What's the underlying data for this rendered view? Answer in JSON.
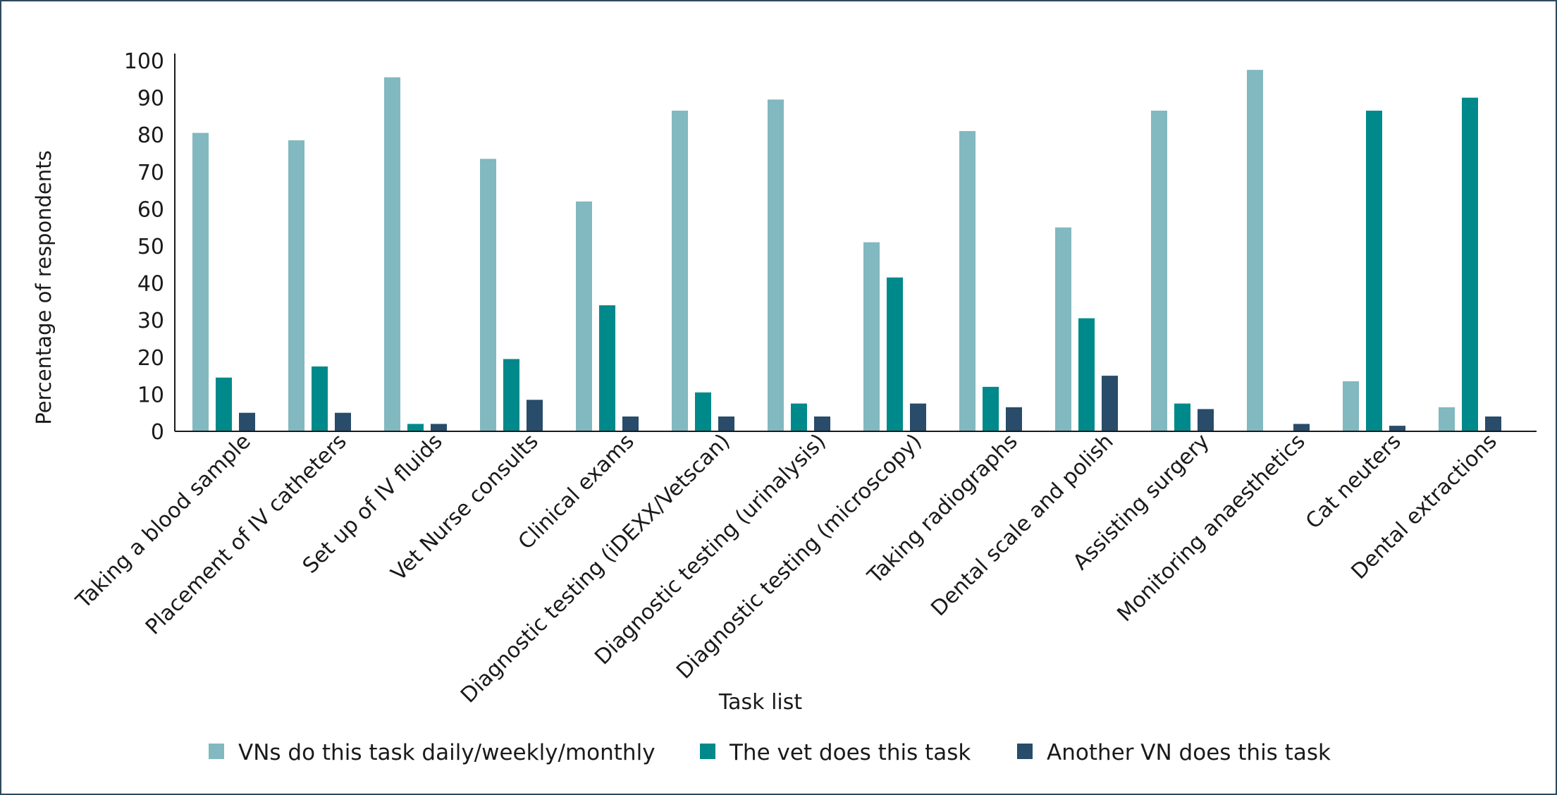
{
  "chart_data": {
    "type": "bar",
    "title": "",
    "xlabel": "Task list",
    "ylabel": "Percentage of respondents",
    "ylim": [
      0,
      100
    ],
    "yticks": [
      0,
      10,
      20,
      30,
      40,
      50,
      60,
      70,
      80,
      90,
      100
    ],
    "grid": false,
    "legend_position": "bottom",
    "categories": [
      "Taking a blood sample",
      "Placement of IV catheters",
      "Set up of IV fluids",
      "Vet Nurse consults",
      "Clinical exams",
      "Diagnostic testing (iDEXX/Vetscan)",
      "Diagnostic testing (urinalysis)",
      "Diagnostic testing (microscopy)",
      "Taking radiographs",
      "Dental scale and polish",
      "Assisting surgery",
      "Monitoring anaesthetics",
      "Cat neuters",
      "Dental extractions"
    ],
    "series": [
      {
        "name": "VNs do this task daily/weekly/monthly",
        "color": "#82b8bf",
        "values": [
          80.5,
          78.5,
          95.5,
          73.5,
          62,
          86.5,
          89.5,
          51,
          81,
          55,
          86.5,
          97.5,
          13.5,
          6.5
        ]
      },
      {
        "name": "The vet does this task",
        "color": "#00898a",
        "values": [
          14.5,
          17.5,
          2,
          19.5,
          34,
          10.5,
          7.5,
          41.5,
          12,
          30.5,
          7.5,
          0,
          86.5,
          90
        ]
      },
      {
        "name": "Another VN does this task",
        "color": "#284c69",
        "values": [
          5,
          5,
          2,
          8.5,
          4,
          4,
          4,
          7.5,
          6.5,
          15,
          6,
          2,
          1.5,
          4
        ]
      }
    ]
  }
}
